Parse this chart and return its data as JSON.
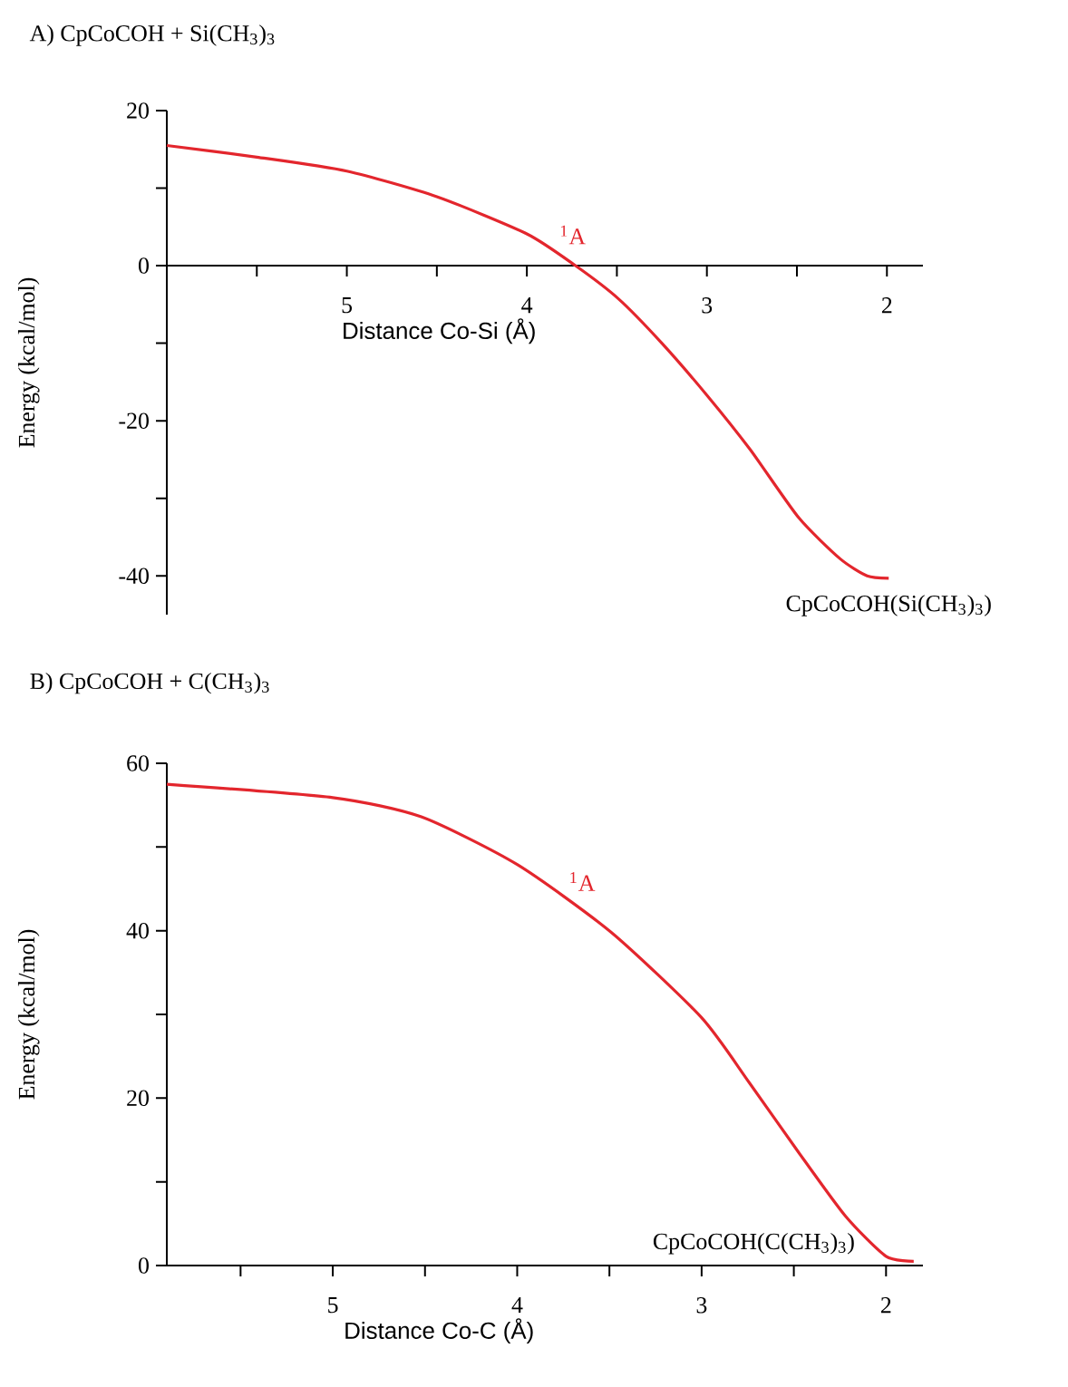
{
  "chart_data": [
    {
      "type": "line",
      "title": "A) CpCoCOH + Si(CH$_{3}$)$_{3}$",
      "xlabel": "Distance Co-Si (Å)",
      "ylabel": "Energy (kcal/mol)",
      "xlim": [
        6.0,
        1.8
      ],
      "ylim": [
        -45,
        20
      ],
      "xticks": [
        {
          "value": 5.5,
          "label": null
        },
        5,
        {
          "value": 4.5,
          "label": null
        },
        4,
        {
          "value": 3.5,
          "label": null
        },
        3,
        {
          "value": 2.5,
          "label": null
        },
        2
      ],
      "yticks": [
        -40,
        {
          "value": -30,
          "label": null
        },
        -20,
        {
          "value": -10,
          "label": null
        },
        0,
        {
          "value": 10,
          "label": null
        },
        20
      ],
      "series": [
        {
          "color": "#e3262d",
          "x": [
            6.0,
            5.5,
            5.0,
            4.5,
            4.0,
            3.73,
            3.49,
            3.25,
            3.0,
            2.76,
            2.49,
            2.26,
            2.11,
            1.99
          ],
          "values": [
            15.5,
            14.0,
            12.2,
            8.9,
            4.1,
            0,
            -4.3,
            -10,
            -16.7,
            -23.7,
            -32.5,
            -37.8,
            -40.0,
            -40.3
          ]
        }
      ],
      "annotations": [
        {
          "text": "$^{1}$A",
          "x": 3.85,
          "y": 2.5
        },
        {
          "text": "CpCoCOH(Si(CH$_{3}$)$_{3}$)",
          "x": 1.99,
          "y": -40.3
        }
      ]
    },
    {
      "type": "line",
      "title": "B) CpCoCOH + C(CH$_{3}$)$_{3}$",
      "xlabel": "Distance Co-C (Å)",
      "ylabel": "Energy (kcal/mol)",
      "xlim": [
        5.9,
        1.8
      ],
      "ylim": [
        0,
        60
      ],
      "xticks": [
        {
          "value": 5.5,
          "label": null
        },
        5,
        {
          "value": 4.5,
          "label": null
        },
        4,
        {
          "value": 3.5,
          "label": null
        },
        3,
        {
          "value": 2.5,
          "label": null
        },
        2
      ],
      "yticks": [
        0,
        {
          "value": 10,
          "label": null
        },
        20,
        {
          "value": 30,
          "label": null
        },
        40,
        {
          "value": 50,
          "label": null
        },
        60
      ],
      "series": [
        {
          "color": "#e3262d",
          "x": [
            5.9,
            5.0,
            4.52,
            4.0,
            3.49,
            3.0,
            2.74,
            2.48,
            2.22,
            2.0,
            1.85
          ],
          "values": [
            57.5,
            55.9,
            53.6,
            47.9,
            39.8,
            29.6,
            21.8,
            13.7,
            5.9,
            1.1,
            0.5
          ]
        }
      ],
      "annotations": [
        {
          "text": "$^{1}$A",
          "x": 3.75,
          "y": 44.5
        },
        {
          "text": "CpCoCOH(C(CH$_{3}$)$_{3}$)",
          "x": 2.0,
          "y": 1.1
        }
      ]
    }
  ]
}
